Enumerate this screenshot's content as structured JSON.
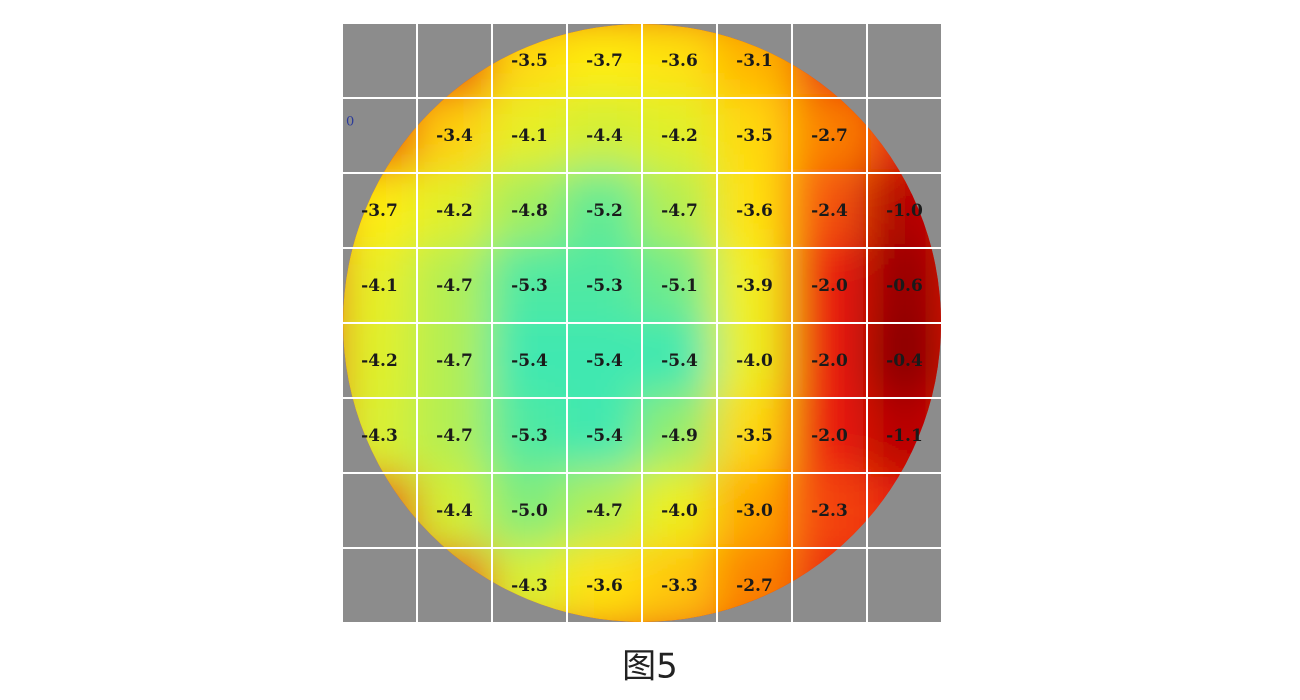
{
  "chart_data": {
    "type": "heatmap",
    "title": "图5",
    "annotation": "0",
    "rows": [
      [
        null,
        null,
        -3.5,
        -3.7,
        -3.6,
        -3.1,
        null,
        null
      ],
      [
        null,
        -3.4,
        -4.1,
        -4.4,
        -4.2,
        -3.5,
        -2.7,
        null
      ],
      [
        -3.7,
        -4.2,
        -4.8,
        -5.2,
        -4.7,
        -3.6,
        -2.4,
        -1.0
      ],
      [
        -4.1,
        -4.7,
        -5.3,
        -5.3,
        -5.1,
        -3.9,
        -2.0,
        -0.6
      ],
      [
        -4.2,
        -4.7,
        -5.4,
        -5.4,
        -5.4,
        -4.0,
        -2.0,
        -0.4
      ],
      [
        -4.3,
        -4.7,
        -5.3,
        -5.4,
        -4.9,
        -3.5,
        -2.0,
        -1.1
      ],
      [
        null,
        -4.4,
        -5.0,
        -4.7,
        -4.0,
        -3.0,
        -2.3,
        null
      ],
      [
        null,
        null,
        -4.3,
        -3.6,
        -3.3,
        -2.7,
        null,
        null
      ]
    ],
    "value_labels": [
      [
        null,
        null,
        "-3.5",
        "-3.7",
        "-3.6",
        "-3.1",
        null,
        null
      ],
      [
        null,
        "-3.4",
        "-4.1",
        "-4.4",
        "-4.2",
        "-3.5",
        "-2.7",
        null
      ],
      [
        "-3.7",
        "-4.2",
        "-4.8",
        "-5.2",
        "-4.7",
        "-3.6",
        "-2.4",
        "-1.0"
      ],
      [
        "-4.1",
        "-4.7",
        "-5.3",
        "-5.3",
        "-5.1",
        "-3.9",
        "-2.0",
        "-0.6"
      ],
      [
        "-4.2",
        "-4.7",
        "-5.4",
        "-5.4",
        "-5.4",
        "-4.0",
        "-2.0",
        "-0.4"
      ],
      [
        "-4.3",
        "-4.7",
        "-5.3",
        "-5.4",
        "-4.9",
        "-3.5",
        "-2.0",
        "-1.1"
      ],
      [
        null,
        "-4.4",
        "-5.0",
        "-4.7",
        "-4.0",
        "-3.0",
        "-2.3",
        null
      ],
      [
        null,
        null,
        "-4.3",
        "-3.6",
        "-3.3",
        "-2.7",
        null,
        null
      ]
    ],
    "colors": [
      "#40e8b0",
      "#c8f040",
      "#ffef10",
      "#ffa000",
      "#f02010",
      "#c00000",
      "#8a0000"
    ],
    "outside_color": "#8c8c8c",
    "edge_color": "#e81a10",
    "grid_color": "#ffffff"
  }
}
